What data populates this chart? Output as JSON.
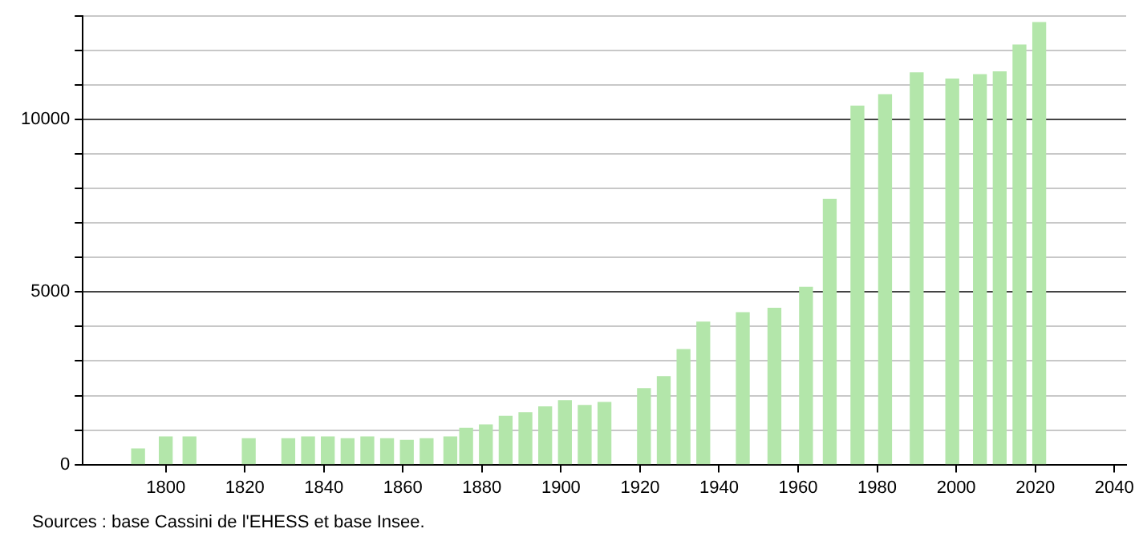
{
  "chart_data": {
    "type": "bar",
    "color": "#b3e6aa",
    "x": [
      1793,
      1800,
      1806,
      1821,
      1831,
      1836,
      1841,
      1846,
      1851,
      1856,
      1861,
      1866,
      1872,
      1876,
      1881,
      1886,
      1891,
      1896,
      1901,
      1906,
      1911,
      1921,
      1926,
      1931,
      1936,
      1946,
      1954,
      1962,
      1968,
      1975,
      1982,
      1990,
      1999,
      2006,
      2011,
      2016,
      2021
    ],
    "values": [
      450,
      800,
      800,
      750,
      750,
      800,
      800,
      750,
      800,
      750,
      700,
      750,
      800,
      1050,
      1150,
      1400,
      1500,
      1670,
      1850,
      1710,
      1800,
      2200,
      2550,
      3330,
      4130,
      4400,
      4530,
      5140,
      7690,
      10390,
      10720,
      11350,
      11170,
      11300,
      11380,
      12160,
      12810
    ],
    "xlim": [
      1779,
      2043
    ],
    "xticks": [
      1800,
      1820,
      1840,
      1860,
      1880,
      1900,
      1920,
      1940,
      1960,
      1980,
      2000,
      2020,
      2040
    ],
    "ylim": [
      0,
      13000
    ],
    "yticks": [
      0,
      {
        "value": 1000,
        "label": null
      },
      {
        "value": 2000,
        "label": null
      },
      {
        "value": 3000,
        "label": null
      },
      {
        "value": 4000,
        "label": null
      },
      5000,
      {
        "value": 6000,
        "label": null
      },
      {
        "value": 7000,
        "label": null
      },
      {
        "value": 8000,
        "label": null
      },
      {
        "value": 9000,
        "label": null
      },
      10000,
      {
        "value": 11000,
        "label": null
      },
      {
        "value": 12000,
        "label": null
      },
      {
        "value": 13000,
        "label": null
      }
    ],
    "grid": "y",
    "annotations": [
      "Sources : base Cassini de l'EHESS et base Insee."
    ]
  }
}
